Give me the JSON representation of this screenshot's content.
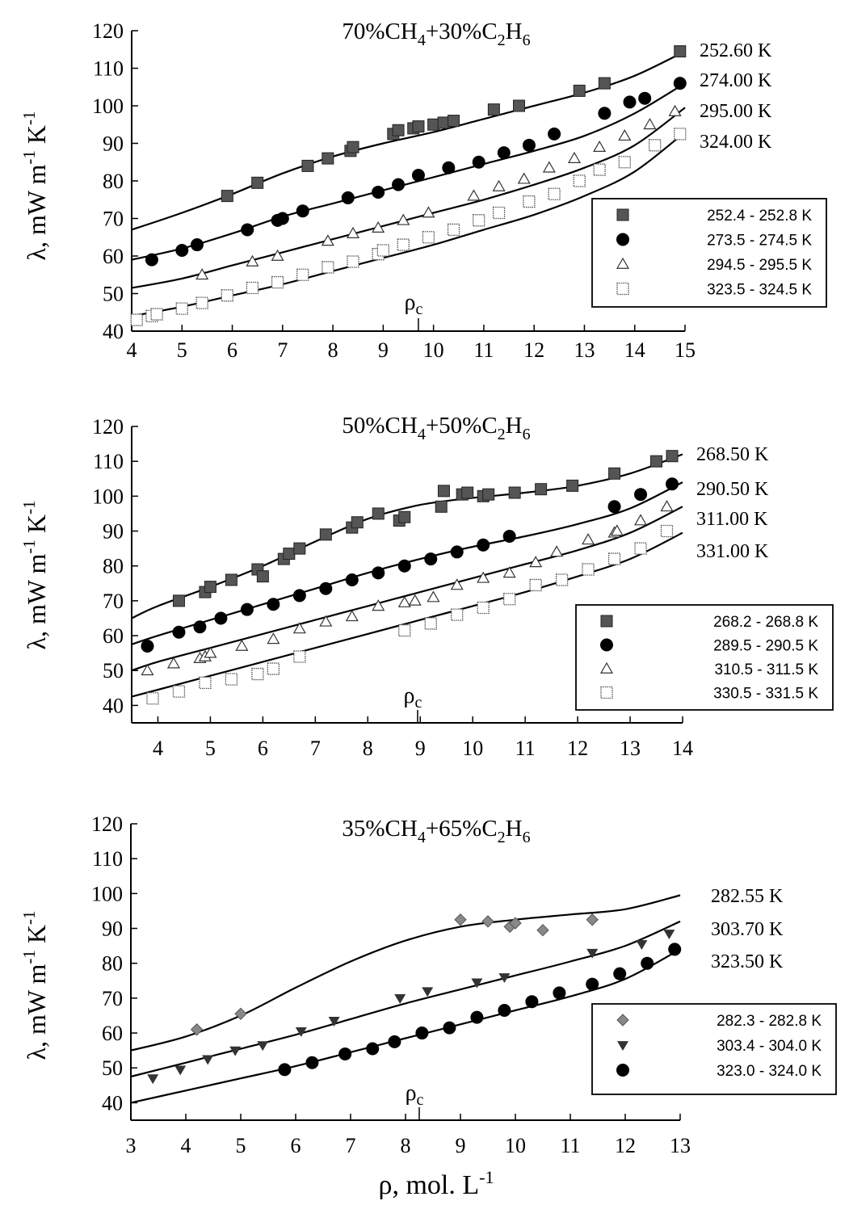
{
  "xlabel": "ρ, mol. L",
  "xlabel_sup": "-1",
  "ylabel_parts": [
    "λ, mW m",
    "-1",
    " K",
    "-1"
  ],
  "rho_c_label": "ρ",
  "rho_c_sub": "c",
  "chart_data": [
    {
      "type": "scatter",
      "title_parts": [
        "70%CH",
        "4",
        "+30%C",
        "2",
        "H",
        "6"
      ],
      "xlim": [
        4,
        15
      ],
      "ylim": [
        40,
        120
      ],
      "xticks": [
        4,
        5,
        6,
        7,
        8,
        9,
        10,
        11,
        12,
        13,
        14,
        15
      ],
      "yticks": [
        40,
        50,
        60,
        70,
        80,
        90,
        100,
        110,
        120
      ],
      "rho_c": 9.7,
      "legend_position": "lower-right",
      "curves": [
        {
          "label": "252.60 K",
          "x": [
            4,
            5,
            6,
            7,
            8,
            9,
            10,
            11,
            12,
            13,
            14,
            15
          ],
          "y": [
            67,
            71.5,
            76.5,
            82,
            86.5,
            90,
            93,
            96.5,
            100,
            103.5,
            108,
            114.5
          ]
        },
        {
          "label": "274.00 K",
          "x": [
            4,
            5,
            6,
            7,
            8,
            9,
            10,
            11,
            12,
            13,
            14,
            15
          ],
          "y": [
            59,
            62,
            66,
            70.5,
            74,
            77.5,
            81,
            84.5,
            88,
            92,
            98,
            106
          ]
        },
        {
          "label": "295.00 K",
          "x": [
            4,
            5,
            6,
            7,
            8,
            9,
            10,
            11,
            12,
            13,
            14,
            15
          ],
          "y": [
            51.5,
            54,
            57.5,
            61,
            64.5,
            68,
            71.5,
            75,
            79,
            83.5,
            89.5,
            99.5
          ]
        },
        {
          "label": "324.00 K",
          "x": [
            4,
            5,
            6,
            7,
            8,
            9,
            10,
            11,
            12,
            13,
            14,
            15
          ],
          "y": [
            44,
            46.5,
            49.5,
            52.5,
            56,
            59.5,
            63,
            67,
            71,
            76,
            82.5,
            93
          ]
        }
      ],
      "series": [
        {
          "name": "252.4 - 252.8 K",
          "marker": "square-filled",
          "x": [
            5.9,
            6.5,
            7.5,
            7.9,
            8.35,
            8.4,
            9.2,
            9.3,
            9.6,
            9.7,
            10.0,
            10.2,
            10.4,
            11.2,
            11.7,
            12.9,
            13.4,
            14.9
          ],
          "y": [
            76,
            79.5,
            84,
            86,
            88,
            89,
            92.5,
            93.5,
            94,
            94.5,
            95,
            95.5,
            96,
            99,
            100,
            104,
            106,
            114.5
          ]
        },
        {
          "name": "273.5 - 274.5 K",
          "marker": "circle-filled",
          "x": [
            4.4,
            5.0,
            5.3,
            6.3,
            6.9,
            7.0,
            7.4,
            8.3,
            8.9,
            9.3,
            9.7,
            10.3,
            10.9,
            11.4,
            11.9,
            12.4,
            13.4,
            13.9,
            14.2,
            14.9
          ],
          "y": [
            59,
            61.5,
            63,
            67,
            69.5,
            70,
            72,
            75.5,
            77,
            79,
            81.5,
            83.5,
            85,
            87.5,
            89.5,
            92.5,
            98,
            101,
            102,
            106
          ]
        },
        {
          "name": "294.5 - 295.5 K",
          "marker": "triangle-open",
          "x": [
            5.4,
            6.4,
            6.9,
            7.9,
            8.4,
            8.9,
            9.4,
            9.9,
            10.8,
            11.3,
            11.8,
            12.3,
            12.8,
            13.3,
            13.8,
            14.3,
            14.8
          ],
          "y": [
            55,
            58.5,
            60,
            64,
            66,
            67.5,
            69.5,
            71.5,
            76,
            78.5,
            80.5,
            83.5,
            86,
            89,
            92,
            95,
            98.5
          ]
        },
        {
          "name": "323.5 - 324.5 K",
          "marker": "square-open",
          "x": [
            4.1,
            4.4,
            4.5,
            5.0,
            5.4,
            5.9,
            6.4,
            6.9,
            7.4,
            7.9,
            8.4,
            8.9,
            9.0,
            9.4,
            9.9,
            10.4,
            10.9,
            11.3,
            11.9,
            12.4,
            12.9,
            13.3,
            13.8,
            14.4,
            14.9
          ],
          "y": [
            43,
            44,
            44.5,
            46,
            47.5,
            49.5,
            51.5,
            53,
            55,
            57,
            58.5,
            60.5,
            61.5,
            63,
            65,
            67,
            69.5,
            71.5,
            74.5,
            76.5,
            80,
            83,
            85,
            89.5,
            92.5
          ]
        }
      ]
    },
    {
      "type": "scatter",
      "title_parts": [
        "50%CH",
        "4",
        "+50%C",
        "2",
        "H",
        "6"
      ],
      "xlim": [
        3.5,
        14
      ],
      "ylim": [
        35,
        120
      ],
      "xticks": [
        4,
        5,
        6,
        7,
        8,
        9,
        10,
        11,
        12,
        13,
        14
      ],
      "yticks": [
        40,
        50,
        60,
        70,
        80,
        90,
        100,
        110,
        120
      ],
      "rho_c": 8.95,
      "legend_position": "lower-right",
      "curves": [
        {
          "label": "268.50 K",
          "x": [
            3.5,
            4,
            5,
            6,
            7,
            8,
            9,
            10,
            11,
            12,
            13,
            14
          ],
          "y": [
            65,
            68.5,
            74,
            80,
            87,
            93.5,
            97.5,
            99.5,
            101,
            103,
            106.5,
            112
          ]
        },
        {
          "label": "290.50 K",
          "x": [
            3.5,
            4,
            5,
            6,
            7,
            8,
            9,
            10,
            11,
            12,
            13,
            14
          ],
          "y": [
            57.5,
            60,
            64.5,
            69,
            73.5,
            78,
            82,
            85.5,
            88.5,
            92,
            96.5,
            104
          ]
        },
        {
          "label": "311.00 K",
          "x": [
            3.5,
            4,
            5,
            6,
            7,
            8,
            9,
            10,
            11,
            12,
            13,
            14
          ],
          "y": [
            50,
            52.5,
            56.5,
            60.5,
            64.5,
            68.5,
            72.5,
            76.5,
            80.5,
            84.5,
            89.5,
            97
          ]
        },
        {
          "label": "331.00 K",
          "x": [
            3.5,
            4,
            5,
            6,
            7,
            8,
            9,
            10,
            11,
            12,
            13,
            14
          ],
          "y": [
            42.5,
            44.5,
            48.5,
            52.5,
            56.5,
            60.5,
            64.5,
            68.5,
            72.5,
            77,
            82,
            89.5
          ]
        }
      ],
      "series": [
        {
          "name": "268.2 - 268.8 K",
          "marker": "square-filled",
          "x": [
            4.4,
            4.9,
            5.0,
            5.4,
            5.9,
            6.0,
            6.4,
            6.5,
            6.7,
            7.2,
            7.7,
            7.8,
            8.2,
            8.6,
            8.7,
            9.4,
            9.45,
            9.8,
            9.9,
            10.2,
            10.3,
            10.8,
            11.3,
            11.9,
            12.7,
            13.5,
            13.8
          ],
          "y": [
            70,
            72.5,
            74,
            76,
            79,
            77,
            82,
            83.5,
            85,
            89,
            91,
            92.5,
            95,
            93,
            94,
            97,
            101.5,
            100.5,
            101,
            100,
            100.5,
            101,
            102,
            103,
            106.5,
            110,
            111.5
          ]
        },
        {
          "name": "289.5 - 290.5 K",
          "marker": "circle-filled",
          "x": [
            3.8,
            4.4,
            4.8,
            5.2,
            5.7,
            6.2,
            6.7,
            7.2,
            7.7,
            8.2,
            8.7,
            9.2,
            9.7,
            10.2,
            10.7,
            12.7,
            13.2,
            13.8
          ],
          "y": [
            57,
            61,
            62.5,
            65,
            67.5,
            69,
            71.5,
            73.5,
            76,
            78,
            80,
            82,
            84,
            86,
            88.5,
            97,
            100.5,
            103.5
          ]
        },
        {
          "name": "310.5 - 311.5 K",
          "marker": "triangle-open",
          "x": [
            3.8,
            4.3,
            4.8,
            4.9,
            5.0,
            5.6,
            6.2,
            6.7,
            7.2,
            7.7,
            8.2,
            8.7,
            8.9,
            9.25,
            9.7,
            10.2,
            10.7,
            11.2,
            11.6,
            12.2,
            12.7,
            12.75,
            13.2,
            13.7
          ],
          "y": [
            50,
            52,
            53.5,
            54,
            55,
            57,
            59,
            62,
            64,
            65.5,
            68.5,
            69.5,
            70,
            71,
            74.5,
            76.5,
            78,
            81,
            84,
            87.5,
            89.5,
            90,
            93,
            97
          ]
        },
        {
          "name": "330.5 - 331.5 K",
          "marker": "square-open",
          "x": [
            3.9,
            4.4,
            4.9,
            5.4,
            5.9,
            6.2,
            6.7,
            8.7,
            9.2,
            9.7,
            10.2,
            10.7,
            11.2,
            11.7,
            12.2,
            12.7,
            13.2,
            13.7
          ],
          "y": [
            42,
            44,
            46.5,
            47.5,
            49,
            50.5,
            54,
            61.5,
            63.5,
            66,
            68,
            70.5,
            74.5,
            76,
            79,
            82,
            85,
            90
          ]
        }
      ]
    },
    {
      "type": "scatter",
      "title_parts": [
        "35%CH",
        "4",
        "+65%C",
        "2",
        "H",
        "6"
      ],
      "xlim": [
        3,
        13
      ],
      "ylim": [
        35,
        120
      ],
      "xticks": [
        3,
        4,
        5,
        6,
        7,
        8,
        9,
        10,
        11,
        12,
        13
      ],
      "yticks": [
        40,
        50,
        60,
        70,
        80,
        90,
        100,
        110,
        120
      ],
      "rho_c": 8.25,
      "legend_position": "lower-right",
      "curves": [
        {
          "label": "282.55 K",
          "x": [
            3,
            4,
            5,
            6,
            7,
            8,
            9,
            10,
            11,
            12,
            13
          ],
          "y": [
            55,
            59,
            65,
            73,
            80.5,
            86.5,
            90.5,
            92.5,
            94,
            95.5,
            99.5
          ]
        },
        {
          "label": "303.70 K",
          "x": [
            3,
            4,
            5,
            6,
            7,
            8,
            9,
            10,
            11,
            12,
            13
          ],
          "y": [
            47.5,
            51.5,
            55.5,
            59.5,
            64,
            68.5,
            72.5,
            76.5,
            80.5,
            85,
            92
          ]
        },
        {
          "label": "323.50 K",
          "x": [
            3,
            4,
            5,
            6,
            7,
            8,
            9,
            10,
            11,
            12,
            13
          ],
          "y": [
            40,
            43.5,
            47,
            50.5,
            54.5,
            58.5,
            62.5,
            66.5,
            70.5,
            75.5,
            84
          ]
        }
      ],
      "series": [
        {
          "name": "282.3 - 282.8 K",
          "marker": "diamond-filled",
          "x": [
            4.2,
            5.0,
            9.0,
            9.5,
            9.9,
            10.0,
            10.5,
            11.4
          ],
          "y": [
            61,
            65.5,
            92.5,
            92,
            90.5,
            91.5,
            89.5,
            92.5
          ]
        },
        {
          "name": "303.4 - 304.0 K",
          "marker": "triangle-down-filled",
          "x": [
            3.4,
            3.9,
            4.4,
            4.9,
            5.4,
            6.1,
            6.7,
            7.9,
            8.4,
            9.3,
            9.8,
            11.4,
            12.3,
            12.8
          ],
          "y": [
            47,
            49.5,
            52.5,
            55,
            56.5,
            60.5,
            63.5,
            70,
            72,
            74.5,
            76,
            83,
            85.5,
            88.5
          ]
        },
        {
          "name": "323.0 - 324.0 K",
          "marker": "circle-filled",
          "x": [
            5.8,
            6.3,
            6.9,
            7.4,
            7.8,
            8.3,
            8.8,
            9.3,
            9.8,
            10.3,
            10.8,
            11.4,
            11.9,
            12.4,
            12.9
          ],
          "y": [
            49.5,
            51.5,
            54,
            55.5,
            57.5,
            60,
            61.5,
            64.5,
            66.5,
            69,
            71.5,
            74,
            77,
            80,
            84
          ]
        }
      ]
    }
  ]
}
